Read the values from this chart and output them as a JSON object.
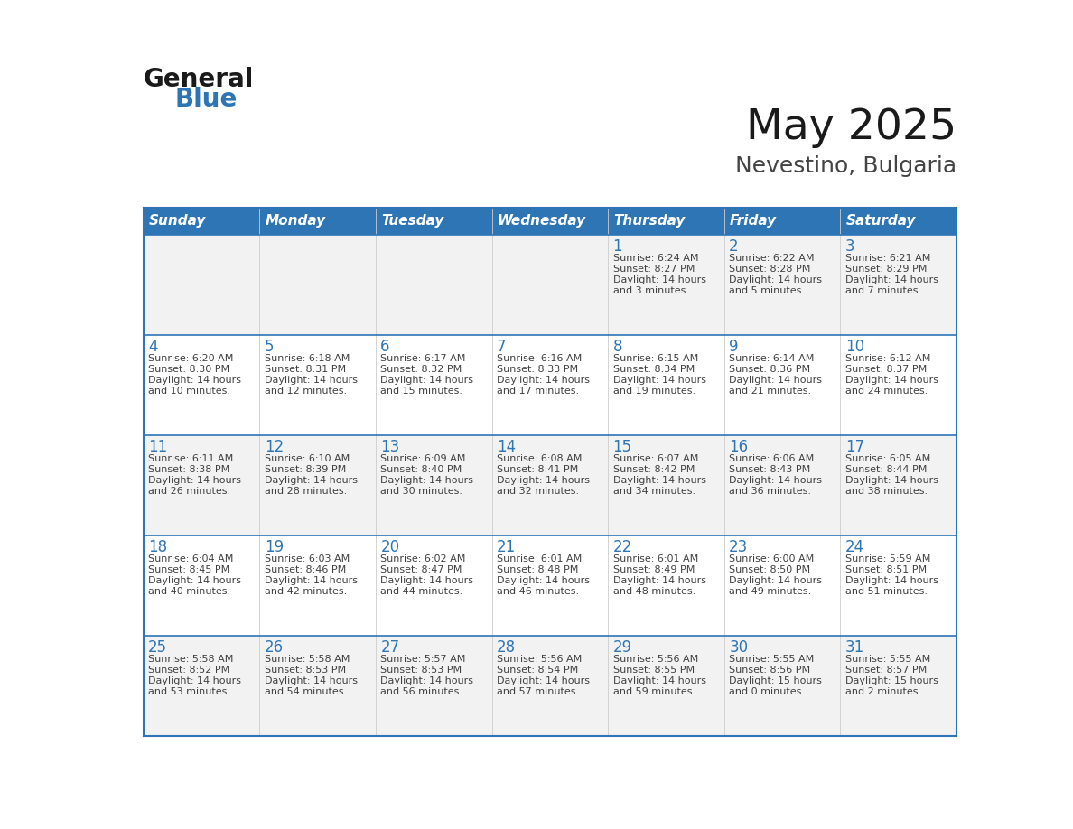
{
  "title": "May 2025",
  "subtitle": "Nevestino, Bulgaria",
  "header_color": "#2e75b6",
  "header_text_color": "#ffffff",
  "cell_bg_even": "#f2f2f2",
  "cell_bg_odd": "#ffffff",
  "day_number_color": "#2e75b6",
  "text_color": "#404040",
  "border_color": "#2e75b6",
  "inner_line_color": "#aaaaaa",
  "days_of_week": [
    "Sunday",
    "Monday",
    "Tuesday",
    "Wednesday",
    "Thursday",
    "Friday",
    "Saturday"
  ],
  "weeks": [
    [
      {
        "day": null,
        "sunrise": null,
        "sunset": null,
        "daylight_line1": null,
        "daylight_line2": null
      },
      {
        "day": null,
        "sunrise": null,
        "sunset": null,
        "daylight_line1": null,
        "daylight_line2": null
      },
      {
        "day": null,
        "sunrise": null,
        "sunset": null,
        "daylight_line1": null,
        "daylight_line2": null
      },
      {
        "day": null,
        "sunrise": null,
        "sunset": null,
        "daylight_line1": null,
        "daylight_line2": null
      },
      {
        "day": 1,
        "sunrise": "6:24 AM",
        "sunset": "8:27 PM",
        "daylight_line1": "Daylight: 14 hours",
        "daylight_line2": "and 3 minutes."
      },
      {
        "day": 2,
        "sunrise": "6:22 AM",
        "sunset": "8:28 PM",
        "daylight_line1": "Daylight: 14 hours",
        "daylight_line2": "and 5 minutes."
      },
      {
        "day": 3,
        "sunrise": "6:21 AM",
        "sunset": "8:29 PM",
        "daylight_line1": "Daylight: 14 hours",
        "daylight_line2": "and 7 minutes."
      }
    ],
    [
      {
        "day": 4,
        "sunrise": "6:20 AM",
        "sunset": "8:30 PM",
        "daylight_line1": "Daylight: 14 hours",
        "daylight_line2": "and 10 minutes."
      },
      {
        "day": 5,
        "sunrise": "6:18 AM",
        "sunset": "8:31 PM",
        "daylight_line1": "Daylight: 14 hours",
        "daylight_line2": "and 12 minutes."
      },
      {
        "day": 6,
        "sunrise": "6:17 AM",
        "sunset": "8:32 PM",
        "daylight_line1": "Daylight: 14 hours",
        "daylight_line2": "and 15 minutes."
      },
      {
        "day": 7,
        "sunrise": "6:16 AM",
        "sunset": "8:33 PM",
        "daylight_line1": "Daylight: 14 hours",
        "daylight_line2": "and 17 minutes."
      },
      {
        "day": 8,
        "sunrise": "6:15 AM",
        "sunset": "8:34 PM",
        "daylight_line1": "Daylight: 14 hours",
        "daylight_line2": "and 19 minutes."
      },
      {
        "day": 9,
        "sunrise": "6:14 AM",
        "sunset": "8:36 PM",
        "daylight_line1": "Daylight: 14 hours",
        "daylight_line2": "and 21 minutes."
      },
      {
        "day": 10,
        "sunrise": "6:12 AM",
        "sunset": "8:37 PM",
        "daylight_line1": "Daylight: 14 hours",
        "daylight_line2": "and 24 minutes."
      }
    ],
    [
      {
        "day": 11,
        "sunrise": "6:11 AM",
        "sunset": "8:38 PM",
        "daylight_line1": "Daylight: 14 hours",
        "daylight_line2": "and 26 minutes."
      },
      {
        "day": 12,
        "sunrise": "6:10 AM",
        "sunset": "8:39 PM",
        "daylight_line1": "Daylight: 14 hours",
        "daylight_line2": "and 28 minutes."
      },
      {
        "day": 13,
        "sunrise": "6:09 AM",
        "sunset": "8:40 PM",
        "daylight_line1": "Daylight: 14 hours",
        "daylight_line2": "and 30 minutes."
      },
      {
        "day": 14,
        "sunrise": "6:08 AM",
        "sunset": "8:41 PM",
        "daylight_line1": "Daylight: 14 hours",
        "daylight_line2": "and 32 minutes."
      },
      {
        "day": 15,
        "sunrise": "6:07 AM",
        "sunset": "8:42 PM",
        "daylight_line1": "Daylight: 14 hours",
        "daylight_line2": "and 34 minutes."
      },
      {
        "day": 16,
        "sunrise": "6:06 AM",
        "sunset": "8:43 PM",
        "daylight_line1": "Daylight: 14 hours",
        "daylight_line2": "and 36 minutes."
      },
      {
        "day": 17,
        "sunrise": "6:05 AM",
        "sunset": "8:44 PM",
        "daylight_line1": "Daylight: 14 hours",
        "daylight_line2": "and 38 minutes."
      }
    ],
    [
      {
        "day": 18,
        "sunrise": "6:04 AM",
        "sunset": "8:45 PM",
        "daylight_line1": "Daylight: 14 hours",
        "daylight_line2": "and 40 minutes."
      },
      {
        "day": 19,
        "sunrise": "6:03 AM",
        "sunset": "8:46 PM",
        "daylight_line1": "Daylight: 14 hours",
        "daylight_line2": "and 42 minutes."
      },
      {
        "day": 20,
        "sunrise": "6:02 AM",
        "sunset": "8:47 PM",
        "daylight_line1": "Daylight: 14 hours",
        "daylight_line2": "and 44 minutes."
      },
      {
        "day": 21,
        "sunrise": "6:01 AM",
        "sunset": "8:48 PM",
        "daylight_line1": "Daylight: 14 hours",
        "daylight_line2": "and 46 minutes."
      },
      {
        "day": 22,
        "sunrise": "6:01 AM",
        "sunset": "8:49 PM",
        "daylight_line1": "Daylight: 14 hours",
        "daylight_line2": "and 48 minutes."
      },
      {
        "day": 23,
        "sunrise": "6:00 AM",
        "sunset": "8:50 PM",
        "daylight_line1": "Daylight: 14 hours",
        "daylight_line2": "and 49 minutes."
      },
      {
        "day": 24,
        "sunrise": "5:59 AM",
        "sunset": "8:51 PM",
        "daylight_line1": "Daylight: 14 hours",
        "daylight_line2": "and 51 minutes."
      }
    ],
    [
      {
        "day": 25,
        "sunrise": "5:58 AM",
        "sunset": "8:52 PM",
        "daylight_line1": "Daylight: 14 hours",
        "daylight_line2": "and 53 minutes."
      },
      {
        "day": 26,
        "sunrise": "5:58 AM",
        "sunset": "8:53 PM",
        "daylight_line1": "Daylight: 14 hours",
        "daylight_line2": "and 54 minutes."
      },
      {
        "day": 27,
        "sunrise": "5:57 AM",
        "sunset": "8:53 PM",
        "daylight_line1": "Daylight: 14 hours",
        "daylight_line2": "and 56 minutes."
      },
      {
        "day": 28,
        "sunrise": "5:56 AM",
        "sunset": "8:54 PM",
        "daylight_line1": "Daylight: 14 hours",
        "daylight_line2": "and 57 minutes."
      },
      {
        "day": 29,
        "sunrise": "5:56 AM",
        "sunset": "8:55 PM",
        "daylight_line1": "Daylight: 14 hours",
        "daylight_line2": "and 59 minutes."
      },
      {
        "day": 30,
        "sunrise": "5:55 AM",
        "sunset": "8:56 PM",
        "daylight_line1": "Daylight: 15 hours",
        "daylight_line2": "and 0 minutes."
      },
      {
        "day": 31,
        "sunrise": "5:55 AM",
        "sunset": "8:57 PM",
        "daylight_line1": "Daylight: 15 hours",
        "daylight_line2": "and 2 minutes."
      }
    ]
  ],
  "logo_general_color": "#1a1a1a",
  "logo_blue_color": "#2e75b6",
  "title_color": "#1a1a1a",
  "subtitle_color": "#444444"
}
